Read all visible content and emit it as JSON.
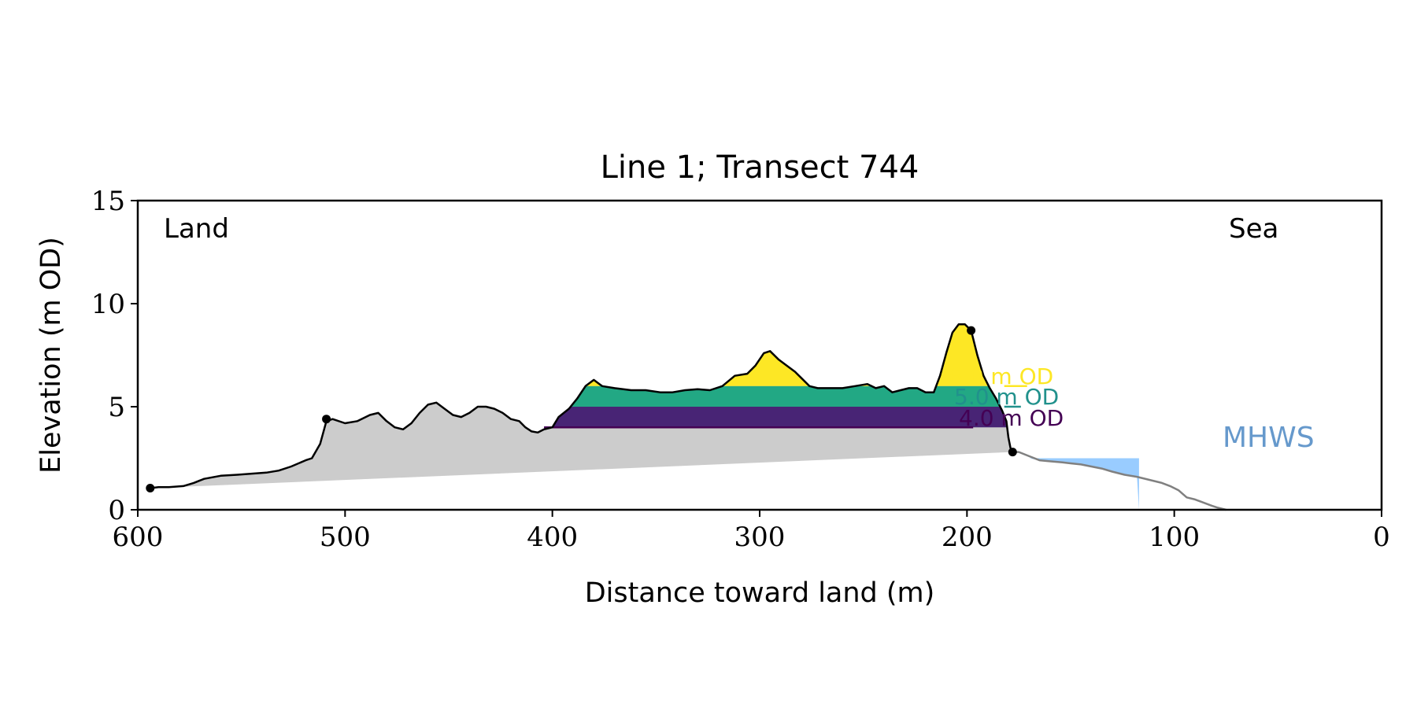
{
  "chart_data": {
    "type": "area",
    "title": "Line 1; Transect 744",
    "xlabel": "Distance toward land (m)",
    "ylabel": "Elevation (m OD)",
    "xlim": [
      600,
      0
    ],
    "ylim": [
      0,
      15
    ],
    "x_ticks": [
      600,
      500,
      400,
      300,
      200,
      100,
      0
    ],
    "y_ticks": [
      0,
      5,
      10,
      15
    ],
    "x_tick_labels": [
      "600",
      "500",
      "400",
      "300",
      "200",
      "100",
      "0"
    ],
    "y_tick_labels": [
      "0",
      "5",
      "10",
      "15"
    ],
    "grid": false,
    "annotations": {
      "land": "Land",
      "sea": "Sea",
      "mhws": "MHWS"
    },
    "profile": [
      [
        594,
        1.05
      ],
      [
        590,
        1.1
      ],
      [
        585,
        1.1
      ],
      [
        578,
        1.15
      ],
      [
        573,
        1.3
      ],
      [
        568,
        1.5
      ],
      [
        560,
        1.65
      ],
      [
        552,
        1.7
      ],
      [
        545,
        1.75
      ],
      [
        538,
        1.8
      ],
      [
        532,
        1.9
      ],
      [
        526,
        2.1
      ],
      [
        519,
        2.4
      ],
      [
        516,
        2.5
      ],
      [
        512,
        3.2
      ],
      [
        509,
        4.3
      ],
      [
        506,
        4.4
      ],
      [
        500,
        4.2
      ],
      [
        494,
        4.3
      ],
      [
        488,
        4.6
      ],
      [
        484,
        4.7
      ],
      [
        480,
        4.3
      ],
      [
        476,
        4.0
      ],
      [
        472,
        3.9
      ],
      [
        468,
        4.2
      ],
      [
        464,
        4.7
      ],
      [
        460,
        5.1
      ],
      [
        456,
        5.2
      ],
      [
        452,
        4.9
      ],
      [
        448,
        4.6
      ],
      [
        444,
        4.5
      ],
      [
        440,
        4.7
      ],
      [
        436,
        5.0
      ],
      [
        432,
        5.0
      ],
      [
        428,
        4.9
      ],
      [
        424,
        4.7
      ],
      [
        420,
        4.4
      ],
      [
        416,
        4.3
      ],
      [
        413,
        4.0
      ],
      [
        410,
        3.8
      ],
      [
        407,
        3.75
      ],
      [
        404,
        3.9
      ],
      [
        400,
        4.0
      ],
      [
        397,
        4.5
      ],
      [
        392,
        4.9
      ],
      [
        388,
        5.4
      ],
      [
        384,
        6.0
      ],
      [
        380,
        6.3
      ],
      [
        376,
        6.0
      ],
      [
        370,
        5.9
      ],
      [
        362,
        5.8
      ],
      [
        355,
        5.8
      ],
      [
        348,
        5.7
      ],
      [
        342,
        5.7
      ],
      [
        336,
        5.8
      ],
      [
        330,
        5.85
      ],
      [
        324,
        5.8
      ],
      [
        318,
        6.0
      ],
      [
        312,
        6.5
      ],
      [
        306,
        6.6
      ],
      [
        302,
        7.0
      ],
      [
        298,
        7.6
      ],
      [
        295,
        7.7
      ],
      [
        291,
        7.3
      ],
      [
        287,
        7.0
      ],
      [
        283,
        6.7
      ],
      [
        280,
        6.4
      ],
      [
        276,
        6.0
      ],
      [
        272,
        5.9
      ],
      [
        266,
        5.9
      ],
      [
        260,
        5.9
      ],
      [
        254,
        6.0
      ],
      [
        248,
        6.1
      ],
      [
        244,
        5.9
      ],
      [
        240,
        6.0
      ],
      [
        236,
        5.7
      ],
      [
        232,
        5.8
      ],
      [
        228,
        5.9
      ],
      [
        224,
        5.9
      ],
      [
        220,
        5.7
      ],
      [
        216,
        5.7
      ],
      [
        213,
        6.5
      ],
      [
        210,
        7.6
      ],
      [
        207,
        8.6
      ],
      [
        204,
        9.0
      ],
      [
        201,
        9.0
      ],
      [
        198,
        8.7
      ],
      [
        195,
        7.5
      ],
      [
        192,
        6.5
      ],
      [
        189,
        5.9
      ],
      [
        186,
        5.4
      ],
      [
        183,
        4.8
      ],
      [
        181,
        4.3
      ],
      [
        180,
        3.5
      ],
      [
        179,
        3.0
      ],
      [
        178,
        2.8
      ]
    ],
    "sea_profile": [
      [
        178,
        2.8
      ],
      [
        175,
        2.8
      ],
      [
        170,
        2.6
      ],
      [
        165,
        2.4
      ],
      [
        160,
        2.35
      ],
      [
        154,
        2.3
      ],
      [
        150,
        2.25
      ],
      [
        145,
        2.2
      ],
      [
        140,
        2.1
      ],
      [
        135,
        2.0
      ],
      [
        130,
        1.85
      ],
      [
        124,
        1.7
      ],
      [
        118,
        1.6
      ],
      [
        112,
        1.45
      ],
      [
        106,
        1.3
      ],
      [
        102,
        1.15
      ],
      [
        98,
        0.95
      ],
      [
        94,
        0.6
      ],
      [
        90,
        0.5
      ],
      [
        86,
        0.35
      ],
      [
        82,
        0.2
      ],
      [
        79,
        0.1
      ],
      [
        75,
        0
      ]
    ],
    "markers": [
      [
        594,
        1.05
      ],
      [
        509,
        4.4
      ],
      [
        198,
        8.7
      ],
      [
        178,
        2.8
      ]
    ],
    "levels": [
      {
        "name": "4.0 m OD",
        "value": 4.0,
        "color": "#440154"
      },
      {
        "name": "5.0 m OD",
        "value": 5.0,
        "color": "#21918c"
      },
      {
        "name": "6.0 m OD",
        "value": 6.0,
        "color": "#fde725"
      }
    ],
    "mhws": {
      "value": 2.5,
      "x_from": 178,
      "x_to": 117
    },
    "base_line": [
      [
        594,
        1.05
      ],
      [
        178,
        2.8
      ]
    ],
    "level_span": {
      "x_from": 407,
      "x_to": 181
    },
    "colors": {
      "land_fill": "#cccccc",
      "profile_line": "#000000",
      "sea_line": "#808080",
      "mhws_fill": "#99ccff",
      "mhws_text": "#6699cc",
      "level_4": "#440154",
      "level_4_fill": "#482475",
      "level_5": "#21918c",
      "level_5_fill": "#22a884",
      "level_6": "#fde725"
    }
  }
}
